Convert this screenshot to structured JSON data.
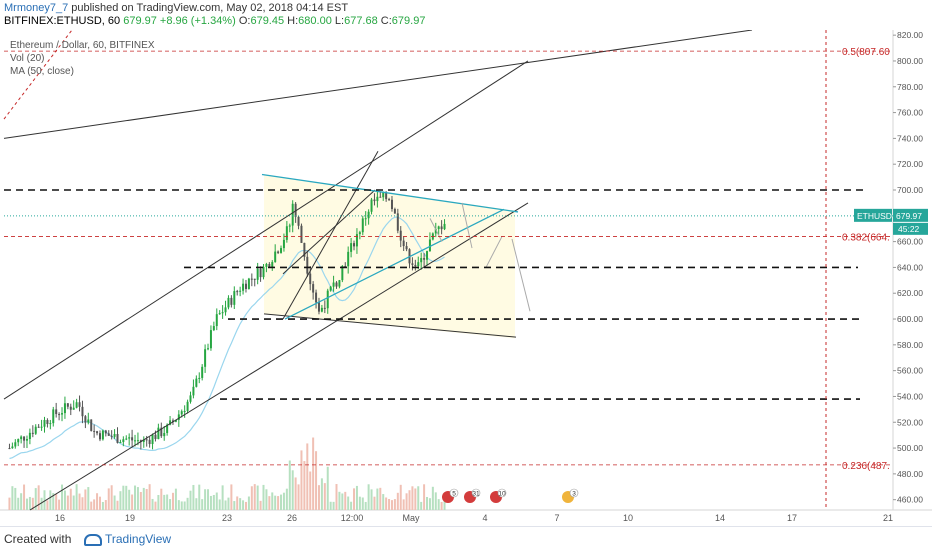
{
  "header": {
    "author": "Mrmoney7_7",
    "published": " published on TradingView.com, May 02, 2018 04:14 EST",
    "symbol": "BITFINEX:ETHUSD, 60",
    "last": "679.97",
    "change": "+8.96 (+1.34%)",
    "o_label": "O:",
    "o": "679.45",
    "h_label": "H:",
    "h": "680.00",
    "l_label": "L:",
    "l": "677.68",
    "c_label": "C:",
    "c": "679.97"
  },
  "legend": {
    "title": "Ethereum / Dollar, 60, BITFINEX",
    "indicator1": "Vol (20)",
    "indicator2": "MA (50, close)"
  },
  "footer": {
    "created_with": "Created with",
    "brand": "TradingView"
  },
  "colors": {
    "up": "#26a641",
    "down": "#555555",
    "ma": "#9ad6ee",
    "fib": "#c62828",
    "triangle_fill": "#fffbe0",
    "teal": "#2aa8c0",
    "price_tag": "#26a69a"
  },
  "chart_data": {
    "type": "candlestick",
    "symbol": "ETHUSD",
    "current_price": "679.97",
    "countdown": "45:22",
    "y_axis": {
      "ticks": [
        "820.00",
        "800.00",
        "780.00",
        "760.00",
        "740.00",
        "720.00",
        "700.00",
        "680.00",
        "660.00",
        "640.00",
        "620.00",
        "600.00",
        "580.00",
        "560.00",
        "540.00",
        "520.00",
        "500.00",
        "480.00",
        "460.00"
      ],
      "range": [
        452,
        824
      ]
    },
    "x_axis": {
      "ticks": [
        "16",
        "19",
        "23",
        "26",
        "12:00",
        "May",
        "4",
        "7",
        "10",
        "14",
        "17",
        "21"
      ]
    },
    "fib_levels": [
      {
        "label": "0.5(807.60",
        "price": 807.6
      },
      {
        "label": "0.382(664.",
        "price": 664.0
      },
      {
        "label": "0.236(487.",
        "price": 487.0
      }
    ],
    "horizontal_levels": [
      700,
      640,
      600,
      538
    ],
    "event_badges": [
      "5",
      "31",
      "10",
      "3"
    ]
  }
}
